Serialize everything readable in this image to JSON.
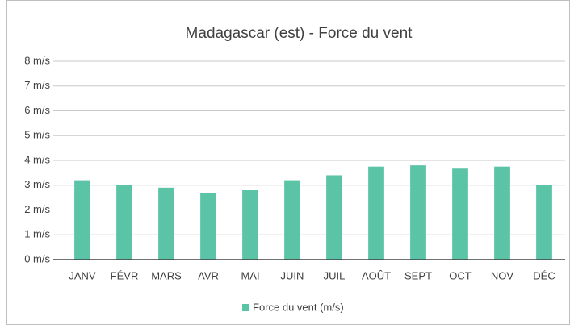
{
  "chart_data": {
    "type": "bar",
    "title": "Madagascar (est) - Force du vent",
    "categories": [
      "JANV",
      "FÉVR",
      "MARS",
      "AVR",
      "MAI",
      "JUIN",
      "JUIL",
      "AOÛT",
      "SEPT",
      "OCT",
      "NOV",
      "DÉC"
    ],
    "series": [
      {
        "name": "Force du vent (m/s)",
        "color": "#5cc4a6",
        "values": [
          3.2,
          3.0,
          2.9,
          2.7,
          2.8,
          3.2,
          3.4,
          3.75,
          3.8,
          3.7,
          3.75,
          3.0
        ]
      }
    ],
    "ylim": [
      0,
      8
    ],
    "yticks": [
      {
        "value": 0,
        "label": "0 m/s"
      },
      {
        "value": 1,
        "label": "1 m/s"
      },
      {
        "value": 2,
        "label": "2 m/s"
      },
      {
        "value": 3,
        "label": "3 m/s"
      },
      {
        "value": 4,
        "label": "4 m/s"
      },
      {
        "value": 5,
        "label": "5 m/s"
      },
      {
        "value": 6,
        "label": "6 m/s"
      },
      {
        "value": 7,
        "label": "7 m/s"
      },
      {
        "value": 8,
        "label": "8 m/s"
      }
    ],
    "grid": true,
    "legend": "bottom"
  }
}
